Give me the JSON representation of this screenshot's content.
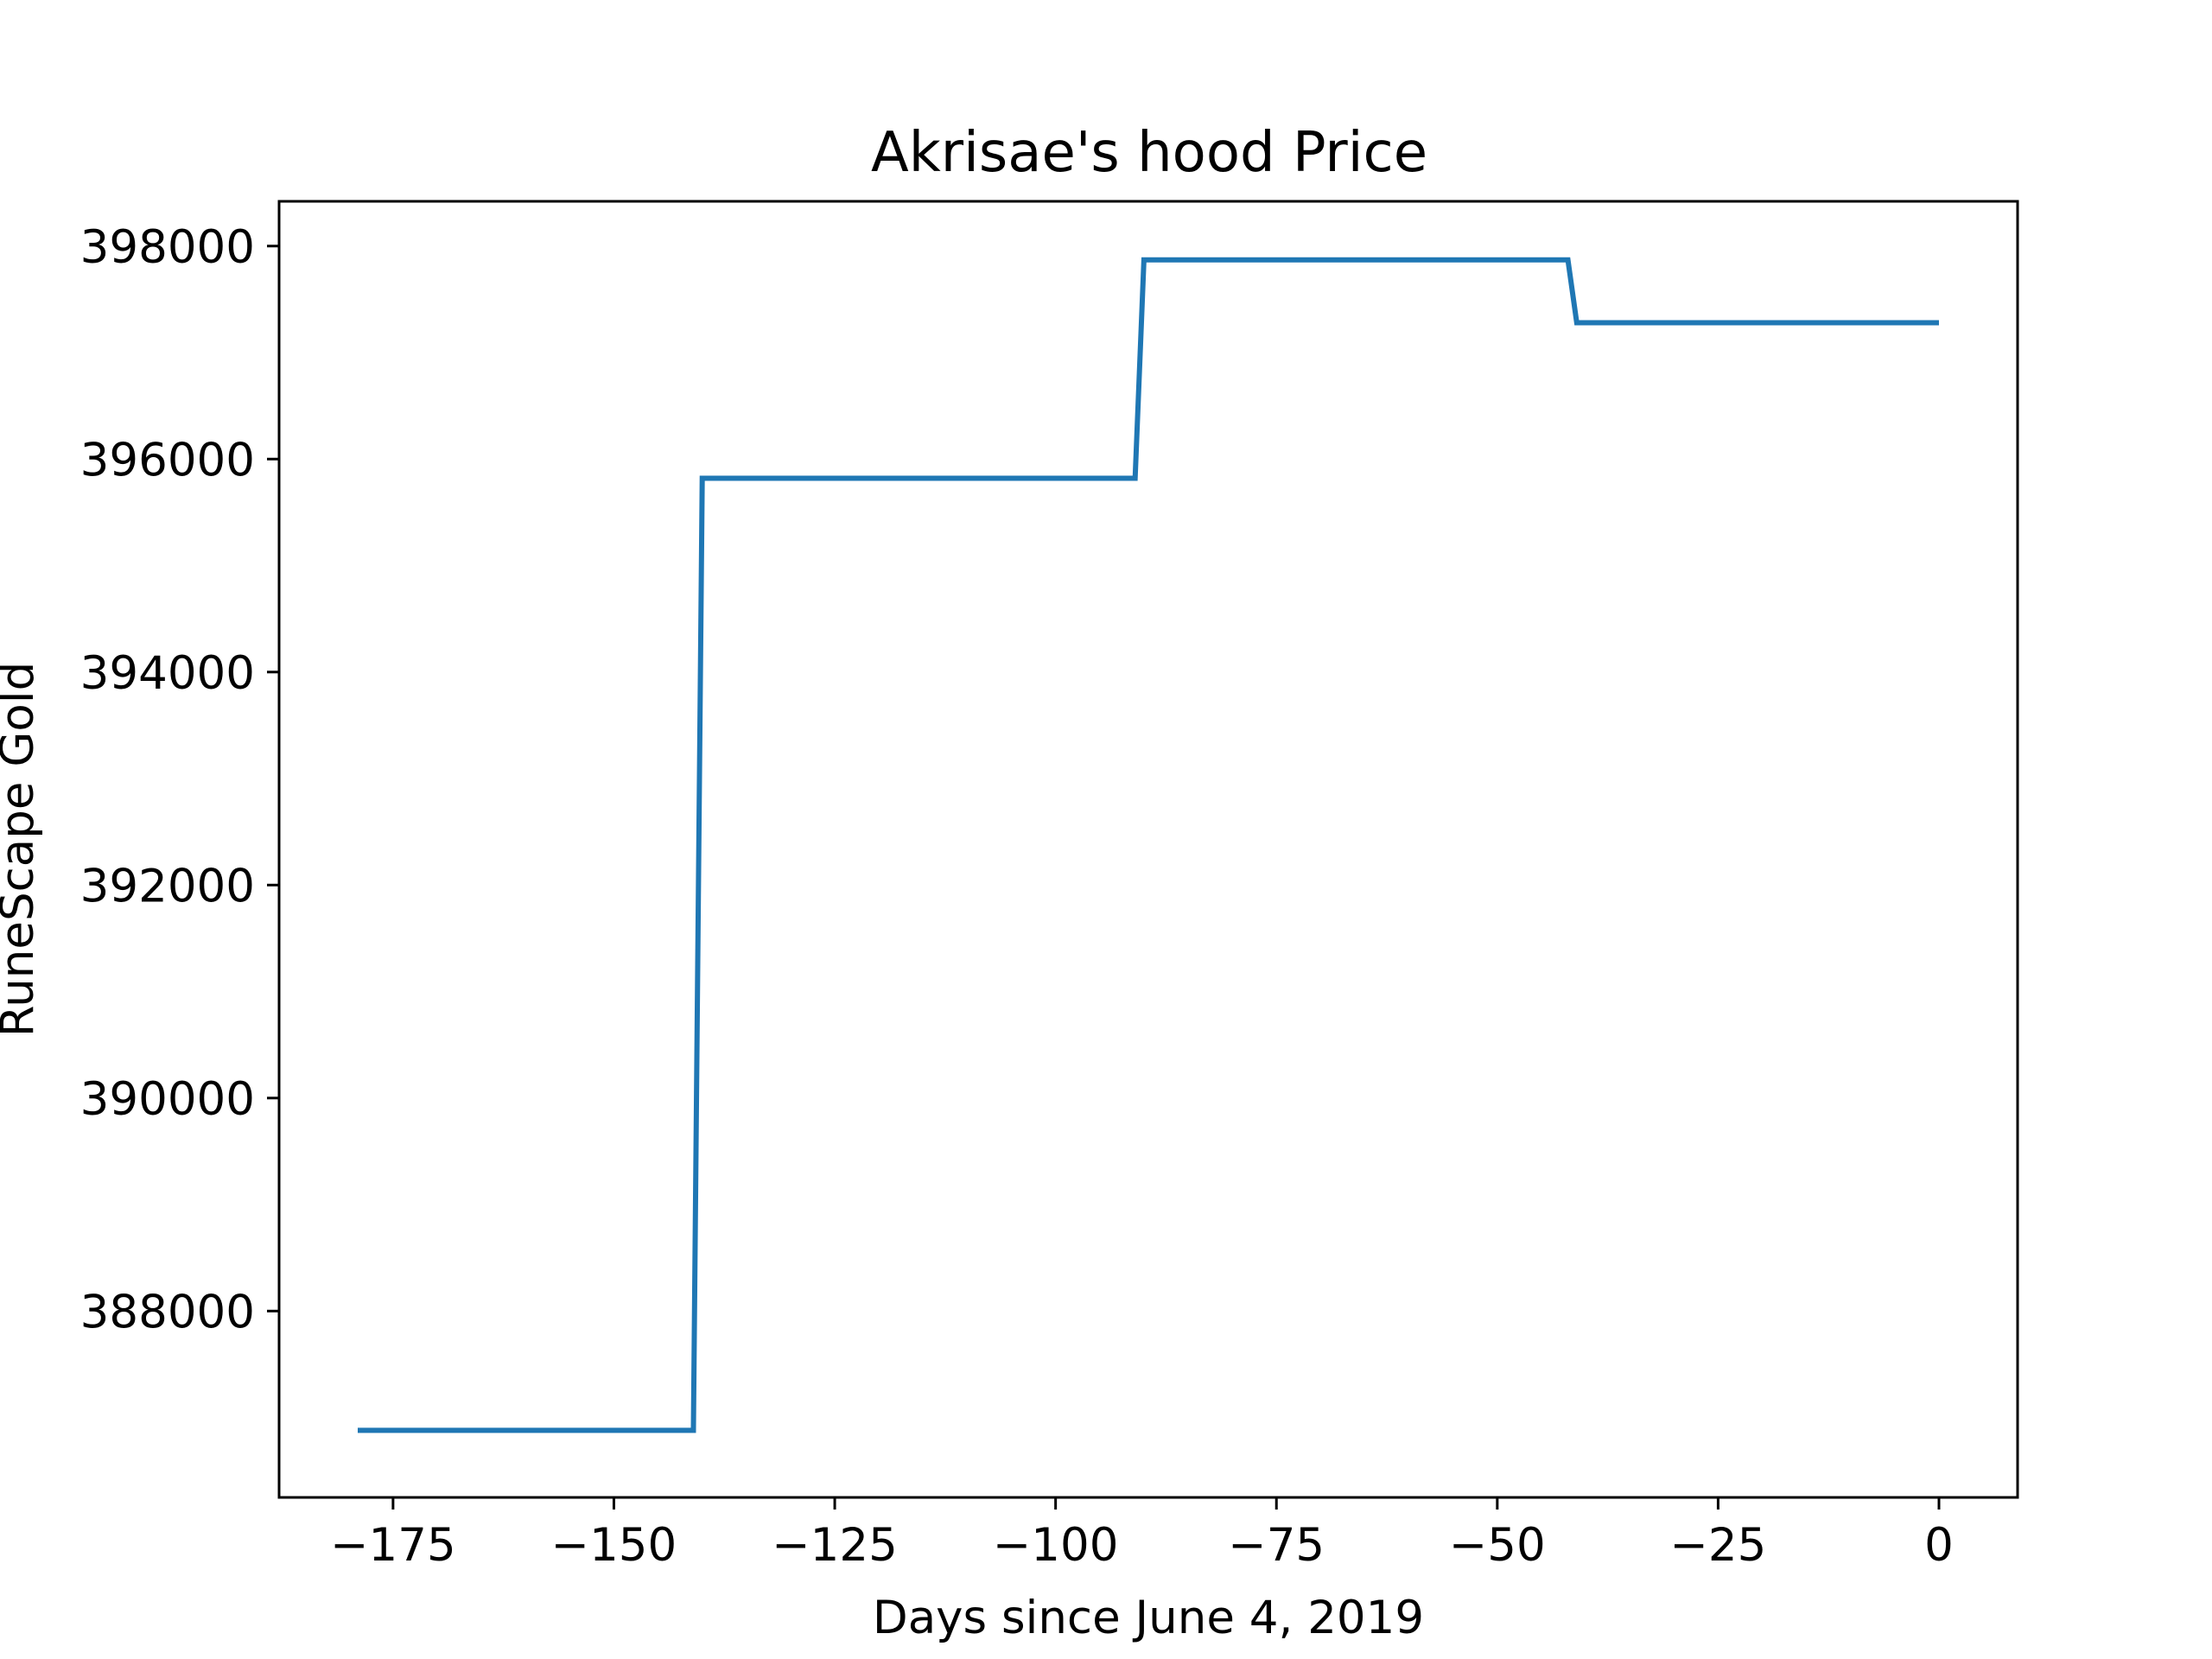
{
  "chart_data": {
    "type": "line",
    "title": "Akrisae's hood Price",
    "xlabel": "Days since June 4, 2019",
    "ylabel": "RuneScape Gold",
    "xlim": [
      -187.9,
      8.9
    ],
    "ylim": [
      386250,
      398420
    ],
    "x_ticks": [
      -175,
      -150,
      -125,
      -100,
      -75,
      -50,
      -25,
      0
    ],
    "x_tick_labels": [
      "−175",
      "−150",
      "−125",
      "−100",
      "−75",
      "−50",
      "−25",
      "0"
    ],
    "y_ticks": [
      388000,
      390000,
      392000,
      394000,
      396000,
      398000
    ],
    "y_tick_labels": [
      "388000",
      "390000",
      "392000",
      "394000",
      "396000",
      "398000"
    ],
    "grid": false,
    "series": [
      {
        "color": "#1f77b4",
        "x": [
          -179,
          -141,
          -140,
          -91,
          -90,
          -42,
          -41,
          0
        ],
        "y": [
          386880,
          386880,
          395820,
          395820,
          397870,
          397870,
          397280,
          397280
        ]
      }
    ]
  }
}
